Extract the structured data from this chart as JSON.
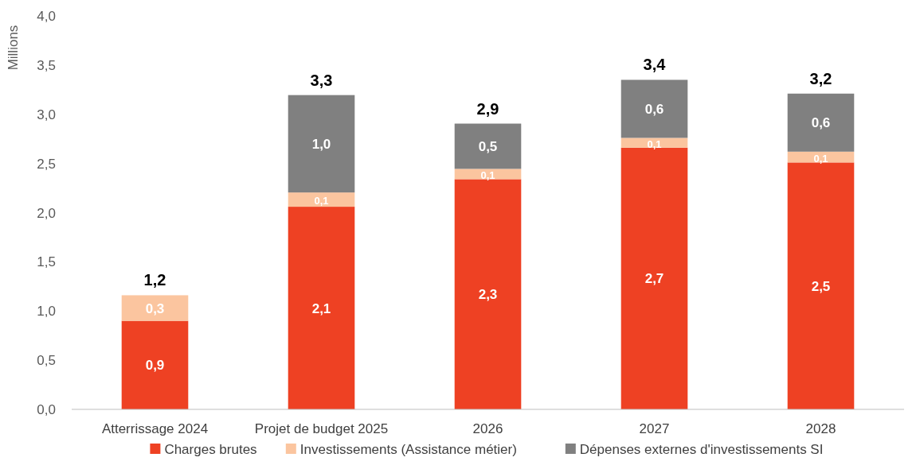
{
  "chart_data": {
    "type": "bar",
    "stacked": true,
    "ylabel": "Millions",
    "categories": [
      "Atterrissage 2024",
      "Projet de budget 2025",
      "2026",
      "2027",
      "2028"
    ],
    "series": [
      {
        "name": "Charges brutes",
        "color": "#ee4123",
        "values": [
          0.9,
          2.06,
          2.34,
          2.66,
          2.51
        ],
        "value_labels": [
          "0,9",
          "2,1",
          "2,3",
          "2,7",
          "2,5"
        ]
      },
      {
        "name": "Investissements (Assistance métier)",
        "color": "#fbc59f",
        "values": [
          0.26,
          0.145,
          0.105,
          0.1,
          0.11
        ],
        "value_labels": [
          "0,3",
          "0,1",
          "0,1",
          "0,1",
          "0,1"
        ]
      },
      {
        "name": "Dépenses externes d'investissements SI",
        "color": "#808080",
        "values": [
          null,
          0.99,
          0.46,
          0.59,
          0.59
        ],
        "value_labels": [
          null,
          "1,0",
          "0,5",
          "0,6",
          "0,6"
        ]
      }
    ],
    "totals": [
      "1,2",
      "3,3",
      "2,9",
      "3,4",
      "3,2"
    ],
    "ylim": [
      0,
      4
    ],
    "yticks": [
      {
        "value": 0,
        "label": "0,0"
      },
      {
        "value": 0.5,
        "label": "0,5"
      },
      {
        "value": 1,
        "label": "1,0"
      },
      {
        "value": 1.5,
        "label": "1,5"
      },
      {
        "value": 2,
        "label": "2,0"
      },
      {
        "value": 2.5,
        "label": "2,5"
      },
      {
        "value": 3,
        "label": "3,0"
      },
      {
        "value": 3.5,
        "label": "3,5"
      },
      {
        "value": 4,
        "label": "4,0"
      }
    ],
    "legend": "bottom"
  }
}
